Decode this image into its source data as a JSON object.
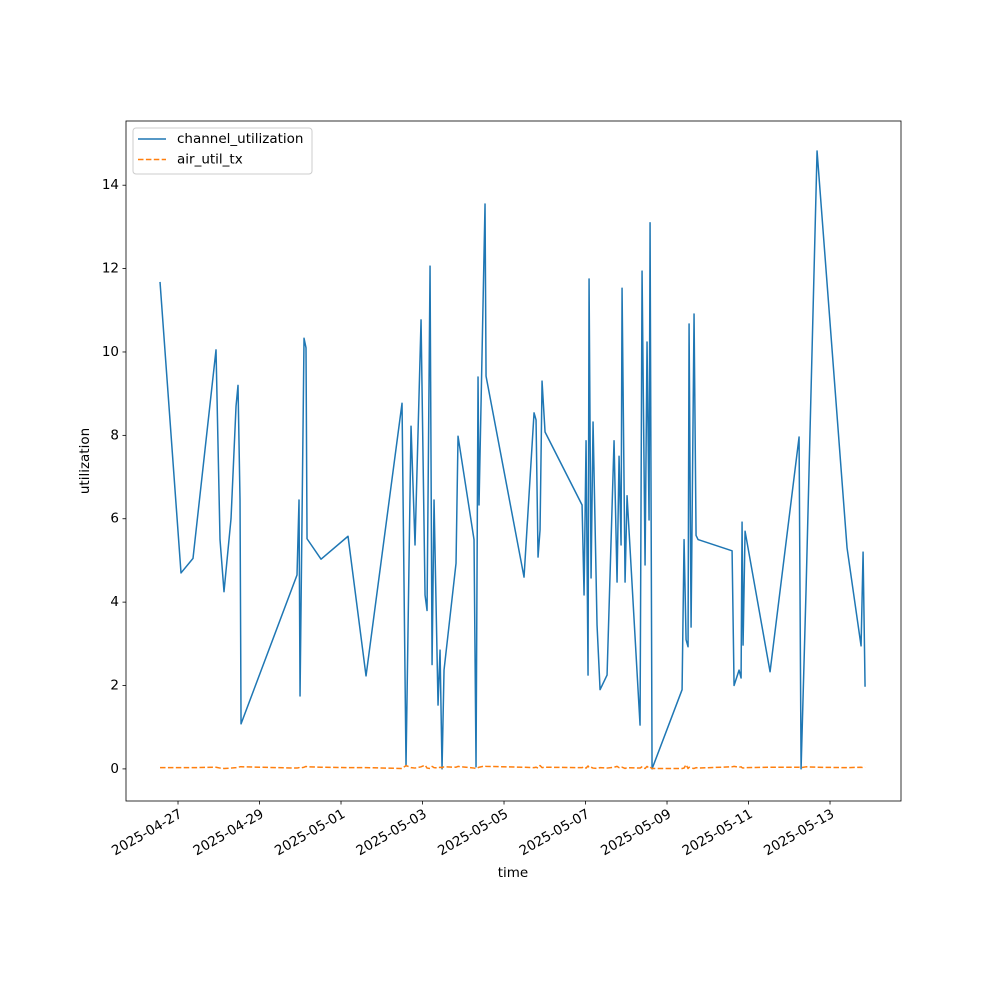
{
  "chart_data": {
    "type": "line",
    "xlabel": "time",
    "ylabel": "utilization",
    "x": [
      "2025-04-26T13:24",
      "2025-04-27T01:46",
      "2025-04-27T08:50",
      "2025-04-27T22:23",
      "2025-04-28T00:44",
      "2025-04-28T03:05",
      "2025-04-28T07:13",
      "2025-04-28T10:10",
      "2025-04-28T11:20",
      "2025-04-28T12:31",
      "2025-04-28T13:07",
      "2025-04-29T22:05",
      "2025-04-29T23:16",
      "2025-04-29T23:52",
      "2025-04-30T02:13",
      "2025-04-30T03:23",
      "2025-04-30T03:59",
      "2025-04-30T12:14",
      "2025-05-01T04:08",
      "2025-05-01T14:44",
      "2025-05-02T11:56",
      "2025-05-02T14:17",
      "2025-05-02T17:14",
      "2025-05-02T19:35",
      "2025-05-02T23:08",
      "2025-05-03T01:29",
      "2025-05-03T02:40",
      "2025-05-03T04:26",
      "2025-05-03T05:37",
      "2025-05-03T06:47",
      "2025-05-03T09:08",
      "2025-05-03T10:19",
      "2025-05-03T11:30",
      "2025-05-03T12:40",
      "2025-05-03T19:44",
      "2025-05-03T20:55",
      "2025-05-04T06:20",
      "2025-05-04T07:31",
      "2025-05-04T08:42",
      "2025-05-04T09:17",
      "2025-05-04T12:49",
      "2025-05-04T13:25",
      "2025-05-05T11:47",
      "2025-05-05T17:41",
      "2025-05-05T18:52",
      "2025-05-05T20:02",
      "2025-05-05T21:13",
      "2025-05-05T22:24",
      "2025-05-06T00:10",
      "2025-05-06T21:58",
      "2025-05-06T23:08",
      "2025-05-07T00:19",
      "2025-05-07T01:29",
      "2025-05-07T02:05",
      "2025-05-07T03:16",
      "2025-05-07T04:26",
      "2025-05-07T06:47",
      "2025-05-07T08:34",
      "2025-05-07T12:41",
      "2025-05-07T16:48",
      "2025-05-07T18:34",
      "2025-05-07T19:45",
      "2025-05-07T20:56",
      "2025-05-07T21:31",
      "2025-05-07T23:17",
      "2025-05-08T00:28",
      "2025-05-08T08:07",
      "2025-05-08T09:18",
      "2025-05-08T11:04",
      "2025-05-08T12:14",
      "2025-05-08T13:25",
      "2025-05-08T14:01",
      "2025-05-08T15:11",
      "2025-05-09T08:52",
      "2025-05-09T10:02",
      "2025-05-09T11:13",
      "2025-05-09T12:23",
      "2025-05-09T12:59",
      "2025-05-09T14:10",
      "2025-05-09T15:55",
      "2025-05-09T17:06",
      "2025-05-09T18:17",
      "2025-05-10T14:19",
      "2025-05-10T15:29",
      "2025-05-10T18:26",
      "2025-05-10T19:37",
      "2025-05-10T20:12",
      "2025-05-10T20:47",
      "2025-05-10T21:58",
      "2025-05-11T12:41",
      "2025-05-12T05:46",
      "2025-05-12T06:57",
      "2025-05-12T09:53",
      "2025-05-12T16:22",
      "2025-05-13T10:02",
      "2025-05-13T18:17",
      "2025-05-13T19:28",
      "2025-05-13T20:38"
    ],
    "series": [
      {
        "name": "channel_utilization",
        "color": "#1f77b4",
        "dash": "solid",
        "values": [
          11.68,
          4.7,
          5.05,
          10.05,
          5.5,
          4.25,
          6.0,
          8.7,
          9.2,
          6.45,
          1.08,
          4.65,
          6.45,
          1.75,
          10.33,
          10.1,
          5.52,
          5.03,
          5.58,
          2.23,
          8.77,
          0.07,
          8.22,
          5.37,
          10.77,
          4.17,
          3.8,
          12.06,
          2.5,
          6.45,
          1.53,
          2.85,
          0.0,
          2.37,
          4.93,
          7.98,
          5.5,
          0.05,
          9.4,
          6.33,
          13.55,
          9.42,
          4.6,
          8.54,
          8.37,
          5.08,
          5.73,
          9.3,
          8.08,
          6.33,
          4.17,
          7.87,
          2.25,
          11.75,
          4.58,
          8.32,
          3.45,
          1.9,
          2.25,
          7.87,
          4.48,
          7.5,
          5.37,
          11.53,
          4.48,
          6.55,
          1.05,
          11.94,
          4.89,
          10.24,
          5.97,
          13.1,
          0.0,
          1.9,
          5.5,
          3.1,
          2.93,
          10.67,
          3.4,
          10.91,
          5.6,
          5.5,
          5.23,
          2.0,
          2.37,
          2.18,
          5.92,
          2.97,
          5.7,
          2.33,
          7.96,
          0.0,
          4.3,
          14.82,
          5.3,
          2.95,
          5.2,
          1.97
        ]
      },
      {
        "name": "air_util_tx",
        "color": "#ff7f0e",
        "dash": "dashed",
        "values": [
          0.03,
          0.03,
          0.03,
          0.04,
          0.02,
          0.01,
          0.02,
          0.03,
          0.04,
          0.05,
          0.05,
          0.02,
          0.03,
          0.02,
          0.04,
          0.06,
          0.05,
          0.04,
          0.03,
          0.03,
          0.01,
          0.08,
          0.03,
          0.02,
          0.05,
          0.09,
          0.02,
          0.01,
          0.06,
          0.03,
          0.02,
          0.04,
          0.03,
          0.05,
          0.04,
          0.06,
          0.02,
          0.01,
          0.03,
          0.04,
          0.07,
          0.06,
          0.04,
          0.03,
          0.04,
          0.02,
          0.08,
          0.03,
          0.04,
          0.03,
          0.05,
          0.02,
          0.07,
          0.03,
          0.04,
          0.02,
          0.01,
          0.03,
          0.02,
          0.04,
          0.06,
          0.03,
          0.02,
          0.04,
          0.01,
          0.03,
          0.02,
          0.05,
          0.01,
          0.06,
          0.02,
          0.04,
          0.01,
          0.01,
          0.02,
          0.1,
          0.01,
          0.04,
          0.02,
          0.01,
          0.03,
          0.02,
          0.05,
          0.06,
          0.04,
          0.05,
          0.03,
          0.02,
          0.03,
          0.04,
          0.04,
          0.03,
          0.05,
          0.04,
          0.03,
          0.04,
          0.03,
          0.04
        ]
      }
    ],
    "xlim": [
      "2025-04-25T17:22",
      "2025-05-14T17:48"
    ],
    "xticks": [
      "2025-04-27",
      "2025-04-29",
      "2025-05-01",
      "2025-05-03",
      "2025-05-05",
      "2025-05-07",
      "2025-05-09",
      "2025-05-11",
      "2025-05-13"
    ],
    "ylim": [
      -0.77,
      15.54
    ],
    "yticks": [
      0,
      2,
      4,
      6,
      8,
      10,
      12,
      14
    ],
    "grid": false,
    "legend": "upper left"
  }
}
